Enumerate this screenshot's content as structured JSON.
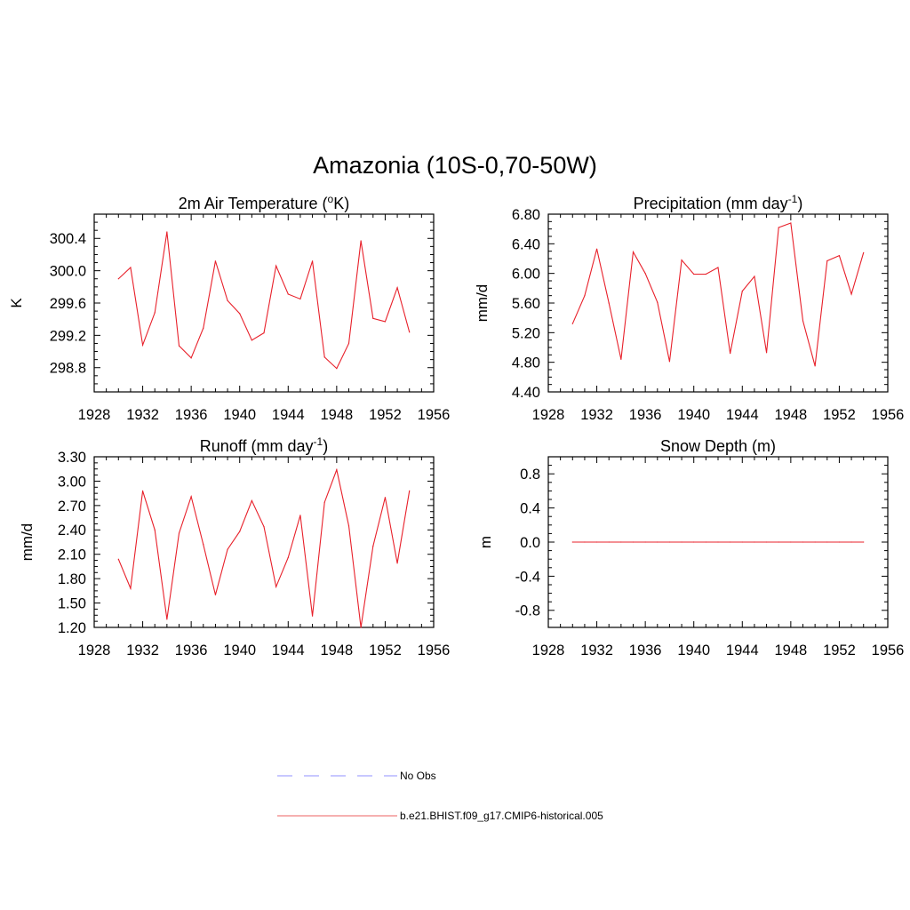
{
  "main_title": "Amazonia (10S-0,70-50W)",
  "colors": {
    "model": "#e8202a",
    "obs": "#a8a8ff",
    "frame": "#000000"
  },
  "panels": [
    {
      "title_pre": "2m Air Temperature (",
      "title_sup": "o",
      "title_post": "K)"
    },
    {
      "title_pre": "Precipitation (mm day",
      "title_sup": "-1",
      "title_post": ")"
    },
    {
      "title_pre": "Runoff (mm day",
      "title_sup": "-1",
      "title_post": ")"
    },
    {
      "title_pre": "Snow Depth (m)",
      "title_sup": "",
      "title_post": ""
    }
  ],
  "legend": {
    "items": [
      {
        "label": "No Obs",
        "style": "dashed",
        "color": "#a8a8ff"
      },
      {
        "label": "b.e21.BHIST.f09_g17.CMIP6-historical.005",
        "style": "solid",
        "color": "#f08080"
      }
    ]
  },
  "chart_data": [
    {
      "type": "line",
      "title": "2m Air Temperature (oK)",
      "xlabel": "",
      "ylabel": "K",
      "xlim": [
        1928,
        1956
      ],
      "ylim": [
        298.5,
        300.7
      ],
      "xticks": [
        1928,
        1932,
        1936,
        1940,
        1944,
        1948,
        1952,
        1956
      ],
      "xticklabels": [
        "1928",
        "1932",
        "1936",
        "1940",
        "1944",
        "1948",
        "1952",
        "1956"
      ],
      "yticks": [
        298.8,
        299.2,
        299.6,
        300.0,
        300.4
      ],
      "yticklabels": [
        "298.8",
        "299.2",
        "299.6",
        "300.0",
        "300.4"
      ],
      "x": [
        1930,
        1931,
        1932,
        1933,
        1934,
        1935,
        1936,
        1937,
        1938,
        1939,
        1940,
        1941,
        1942,
        1943,
        1944,
        1945,
        1946,
        1947,
        1948,
        1949,
        1950,
        1951,
        1952,
        1953,
        1954
      ],
      "series": [
        {
          "name": "b.e21.BHIST.f09_g17.CMIP6-historical.005",
          "values": [
            299.9,
            300.04,
            299.08,
            299.48,
            300.48,
            299.07,
            298.92,
            299.29,
            300.12,
            299.63,
            299.47,
            299.14,
            299.23,
            300.06,
            299.71,
            299.65,
            300.12,
            298.93,
            298.79,
            299.1,
            300.37,
            299.41,
            299.37,
            299.79,
            299.24
          ]
        }
      ],
      "grid": false
    },
    {
      "type": "line",
      "title": "Precipitation (mm day-1)",
      "xlabel": "",
      "ylabel": "mm/d",
      "xlim": [
        1928,
        1956
      ],
      "ylim": [
        4.4,
        6.8
      ],
      "xticks": [
        1928,
        1932,
        1936,
        1940,
        1944,
        1948,
        1952,
        1956
      ],
      "xticklabels": [
        "1928",
        "1932",
        "1936",
        "1940",
        "1944",
        "1948",
        "1952",
        "1956"
      ],
      "yticks": [
        4.4,
        4.8,
        5.2,
        5.6,
        6.0,
        6.4,
        6.8
      ],
      "yticklabels": [
        "4.40",
        "4.80",
        "5.20",
        "5.60",
        "6.00",
        "6.40",
        "6.80"
      ],
      "x": [
        1930,
        1931,
        1932,
        1933,
        1934,
        1935,
        1936,
        1937,
        1938,
        1939,
        1940,
        1941,
        1942,
        1943,
        1944,
        1945,
        1946,
        1947,
        1948,
        1949,
        1950,
        1951,
        1952,
        1953,
        1954
      ],
      "series": [
        {
          "name": "b.e21.BHIST.f09_g17.CMIP6-historical.005",
          "values": [
            5.32,
            5.7,
            6.33,
            5.6,
            4.84,
            6.29,
            6.0,
            5.61,
            4.81,
            6.18,
            5.99,
            5.99,
            6.08,
            4.92,
            5.76,
            5.96,
            4.93,
            6.62,
            6.68,
            5.36,
            4.75,
            6.17,
            6.24,
            5.72,
            6.28
          ]
        }
      ],
      "grid": false
    },
    {
      "type": "line",
      "title": "Runoff (mm day-1)",
      "xlabel": "",
      "ylabel": "mm/d",
      "xlim": [
        1928,
        1956
      ],
      "ylim": [
        1.2,
        3.3
      ],
      "xticks": [
        1928,
        1932,
        1936,
        1940,
        1944,
        1948,
        1952,
        1956
      ],
      "xticklabels": [
        "1928",
        "1932",
        "1936",
        "1940",
        "1944",
        "1948",
        "1952",
        "1956"
      ],
      "yticks": [
        1.2,
        1.5,
        1.8,
        2.1,
        2.4,
        2.7,
        3.0,
        3.3
      ],
      "yticklabels": [
        "1.20",
        "1.50",
        "1.80",
        "2.10",
        "2.40",
        "2.70",
        "3.00",
        "3.30"
      ],
      "x": [
        1930,
        1931,
        1932,
        1933,
        1934,
        1935,
        1936,
        1937,
        1938,
        1939,
        1940,
        1941,
        1942,
        1943,
        1944,
        1945,
        1946,
        1947,
        1948,
        1949,
        1950,
        1951,
        1952,
        1953,
        1954
      ],
      "series": [
        {
          "name": "b.e21.BHIST.f09_g17.CMIP6-historical.005",
          "values": [
            2.04,
            1.68,
            2.88,
            2.4,
            1.3,
            2.36,
            2.81,
            2.22,
            1.6,
            2.16,
            2.38,
            2.76,
            2.44,
            1.7,
            2.06,
            2.58,
            1.34,
            2.74,
            3.14,
            2.45,
            1.2,
            2.2,
            2.8,
            1.99,
            2.88
          ]
        }
      ],
      "grid": false
    },
    {
      "type": "line",
      "title": "Snow Depth (m)",
      "xlabel": "",
      "ylabel": "m",
      "xlim": [
        1928,
        1956
      ],
      "ylim": [
        -1.0,
        1.0
      ],
      "xticks": [
        1928,
        1932,
        1936,
        1940,
        1944,
        1948,
        1952,
        1956
      ],
      "xticklabels": [
        "1928",
        "1932",
        "1936",
        "1940",
        "1944",
        "1948",
        "1952",
        "1956"
      ],
      "yticks": [
        -0.8,
        -0.4,
        0.0,
        0.4,
        0.8
      ],
      "yticklabels": [
        "-0.8",
        "-0.4",
        "0.0",
        "0.4",
        "0.8"
      ],
      "x": [
        1930,
        1931,
        1932,
        1933,
        1934,
        1935,
        1936,
        1937,
        1938,
        1939,
        1940,
        1941,
        1942,
        1943,
        1944,
        1945,
        1946,
        1947,
        1948,
        1949,
        1950,
        1951,
        1952,
        1953,
        1954
      ],
      "series": [
        {
          "name": "b.e21.BHIST.f09_g17.CMIP6-historical.005",
          "values": [
            0,
            0,
            0,
            0,
            0,
            0,
            0,
            0,
            0,
            0,
            0,
            0,
            0,
            0,
            0,
            0,
            0,
            0,
            0,
            0,
            0,
            0,
            0,
            0,
            0
          ]
        }
      ],
      "grid": false
    }
  ]
}
